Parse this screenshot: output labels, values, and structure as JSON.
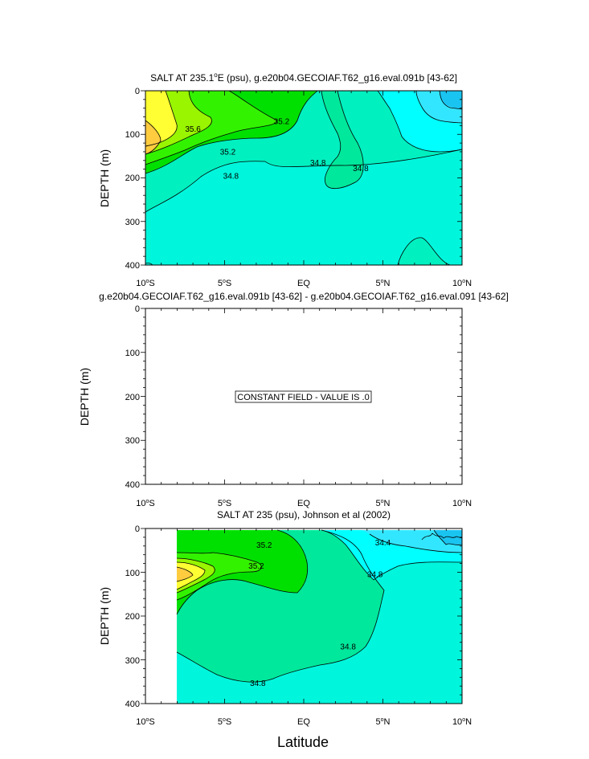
{
  "chart_data": [
    {
      "type": "heatmap",
      "title": "SALT AT 235.1°E (psu), g.e20b04.GECOIAF.T62_g16.eval.091b [43-62]",
      "title_main": "SALT AT 235.1",
      "title_degree": "o",
      "title_rest": "E (psu), g.e20b04.GECOIAF.T62_g16.eval.091b [43-62]",
      "ylabel": "DEPTH (m)",
      "xlim": [
        -10,
        10
      ],
      "ylim": [
        400,
        0
      ],
      "y_ticks": [
        "0",
        "100",
        "200",
        "300",
        "400"
      ],
      "contour_labels": [
        {
          "text": "35.6",
          "x": -7.0,
          "y": 88
        },
        {
          "text": "35.2",
          "x": -1.4,
          "y": 70
        },
        {
          "text": "35.2",
          "x": -4.8,
          "y": 140
        },
        {
          "text": "34.8",
          "x": -4.6,
          "y": 195
        },
        {
          "text": "34.8",
          "x": 0.9,
          "y": 165
        },
        {
          "text": "34.8",
          "x": 3.6,
          "y": 178
        }
      ]
    },
    {
      "type": "heatmap",
      "title": "g.e20b04.GECOIAF.T62_g16.eval.091b [43-62] - g.e20b04.GECOIAF.T62_g16.eval.091 [43-62]",
      "ylabel": "DEPTH (m)",
      "xlim": [
        -10,
        10
      ],
      "ylim": [
        400,
        0
      ],
      "y_ticks": [
        "0",
        "100",
        "200",
        "300",
        "400"
      ],
      "annotation": "CONSTANT FIELD - VALUE IS .0"
    },
    {
      "type": "heatmap",
      "title": "SALT AT 235 (psu), Johnson et al (2002)",
      "ylabel": "DEPTH (m)",
      "xlabel": "Latitude",
      "xlim": [
        -10,
        10
      ],
      "ylim": [
        400,
        0
      ],
      "y_ticks": [
        "0",
        "100",
        "200",
        "300",
        "400"
      ],
      "contour_labels": [
        {
          "text": "35.2",
          "x": -2.5,
          "y": 38
        },
        {
          "text": "35.2",
          "x": -3.0,
          "y": 85
        },
        {
          "text": "34.4",
          "x": 5.0,
          "y": 32
        },
        {
          "text": "34.8",
          "x": 4.5,
          "y": 105
        },
        {
          "text": "34.8",
          "x": 2.8,
          "y": 270
        },
        {
          "text": "34.8",
          "x": -2.9,
          "y": 353
        }
      ]
    }
  ],
  "x_ticks": [
    {
      "deg": "10",
      "hem": "S"
    },
    {
      "deg": "5",
      "hem": "S"
    },
    {
      "deg": "EQ",
      "hem": ""
    },
    {
      "deg": "5",
      "hem": "N"
    },
    {
      "deg": "10",
      "hem": "N"
    }
  ],
  "colors": {
    "cyan": "#00ffff",
    "light_cyan": "#33e6ff",
    "mid_cyan": "#1ac4f0",
    "teal_green": "#00f0c0",
    "sea_green": "#00e89b",
    "green": "#00e000",
    "bright_green": "#33f200",
    "yellow_green": "#99f500",
    "yellow": "#ffff33",
    "orange": "#ffcc40"
  }
}
